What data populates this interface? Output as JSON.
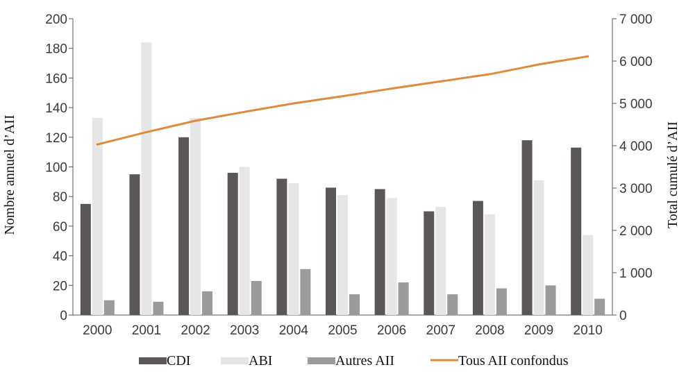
{
  "chart_data": {
    "type": "bar",
    "title": "",
    "categories": [
      "2000",
      "2001",
      "2002",
      "2003",
      "2004",
      "2005",
      "2006",
      "2007",
      "2008",
      "2009",
      "2010"
    ],
    "series": [
      {
        "name": "CDI",
        "type": "bar",
        "axis": "left",
        "color": "#5b5758",
        "values": [
          75,
          95,
          120,
          96,
          92,
          86,
          85,
          70,
          77,
          118,
          113
        ]
      },
      {
        "name": "ABI",
        "type": "bar",
        "axis": "left",
        "color": "#e6e6e6",
        "values": [
          133,
          184,
          133,
          100,
          89,
          81,
          79,
          73,
          68,
          91,
          54
        ]
      },
      {
        "name": "Autres AII",
        "type": "bar",
        "axis": "left",
        "color": "#9b9b9b",
        "values": [
          10,
          9,
          16,
          23,
          31,
          14,
          22,
          14,
          18,
          20,
          11
        ]
      },
      {
        "name": "Tous AII confondus",
        "type": "line",
        "axis": "right",
        "color": "#e08a3c",
        "values": [
          4030,
          4320,
          4590,
          4800,
          5000,
          5170,
          5350,
          5520,
          5690,
          5920,
          6110
        ]
      }
    ],
    "y_left": {
      "label": "Nombre annuel d’AII",
      "min": 0,
      "max": 200,
      "ticks": [
        "0",
        "20",
        "40",
        "60",
        "80",
        "100",
        "120",
        "140",
        "160",
        "180",
        "200"
      ]
    },
    "y_right": {
      "label": "Total cumulé d’AII",
      "min": 0,
      "max": 7000,
      "ticks": [
        "0",
        "1 000",
        "2 000",
        "3 000",
        "4 000",
        "5 000",
        "6 000",
        "7 000"
      ]
    },
    "grid": false,
    "legend_position": "bottom"
  }
}
